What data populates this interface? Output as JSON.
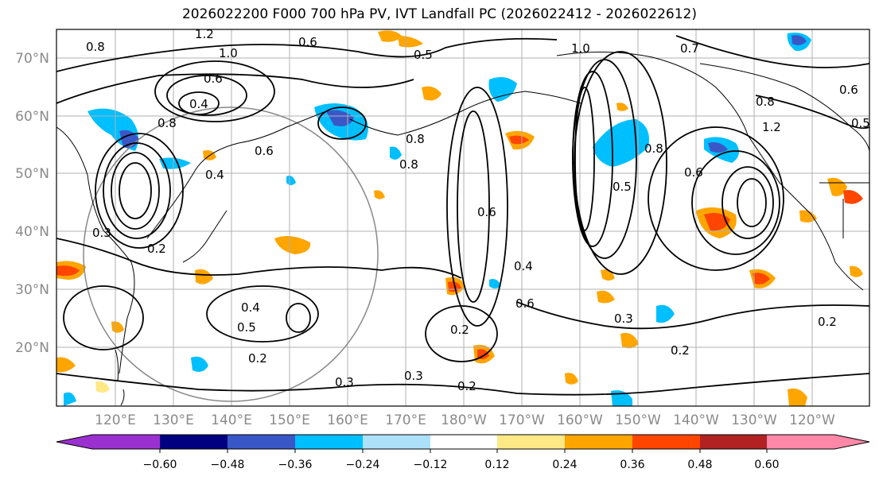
{
  "title": "2026022200 F000 700 hPa PV, IVT Landfall PC (2026022412 - 2026022612)",
  "map": {
    "lat_labels": [
      "70°N",
      "60°N",
      "50°N",
      "40°N",
      "30°N",
      "20°N"
    ],
    "lon_labels": [
      "120°E",
      "130°E",
      "140°E",
      "150°E",
      "160°E",
      "170°E",
      "180°W",
      "170°W",
      "160°W",
      "150°W",
      "140°W",
      "130°W",
      "120°W"
    ]
  },
  "colorbar": {
    "colors": [
      "#9b30d0",
      "#000080",
      "#3a57c8",
      "#00bfff",
      "#ade1fa",
      "#ffffff",
      "#ffe987",
      "#ffa500",
      "#ff4500",
      "#b22222",
      "#ff88a8"
    ],
    "tick_labels": [
      "−0.60",
      "−0.48",
      "−0.36",
      "−0.24",
      "−0.12",
      "0.12",
      "0.24",
      "0.36",
      "0.48",
      "0.60"
    ]
  },
  "contour_labels": [
    "0.8",
    "1.2",
    "1.0",
    "0.6",
    "0.4",
    "0.8",
    "0.6",
    "0.8",
    "0.6",
    "0.4",
    "0.2",
    "0.3",
    "0.4",
    "0.5",
    "0.2",
    "0.3",
    "0.2",
    "0.8",
    "0.5",
    "0.6",
    "0.4",
    "0.6",
    "0.3",
    "0.2",
    "0.2",
    "0.5",
    "0.8",
    "1.2",
    "0.6",
    "0.3",
    "0.2",
    "0.8",
    "1.0",
    "0.7",
    "0.6",
    "0.5"
  ],
  "patch_colors": {
    "orange": "#ffa500",
    "red": "#ff4500",
    "yellow": "#ffe987",
    "blue": "#00bfff",
    "darkblue": "#3a57c8",
    "lightblue": "#ade1fa"
  }
}
